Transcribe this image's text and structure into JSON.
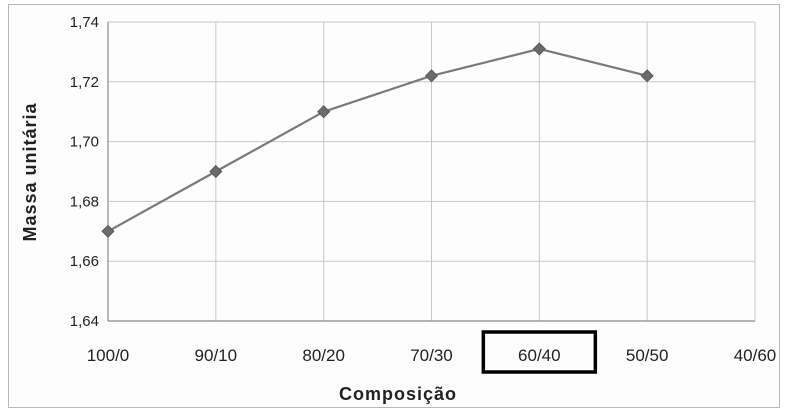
{
  "chart_data": {
    "type": "line",
    "categories": [
      "100/0",
      "90/10",
      "80/20",
      "70/30",
      "60/40",
      "50/50",
      "40/60"
    ],
    "series": [
      {
        "values": [
          1.67,
          1.69,
          1.71,
          1.722,
          1.731,
          1.722,
          null
        ]
      }
    ],
    "xlabel": "Composição",
    "ylabel": "Massa unitária",
    "ylim": [
      1.64,
      1.74
    ],
    "yticks": [
      "1,64",
      "1,66",
      "1,68",
      "1,70",
      "1,72",
      "1,74"
    ],
    "grid": true,
    "highlighted_category": "60/40",
    "colors": {
      "line": "#7a7a7a",
      "marker": "#6a6a6a",
      "grid": "#c8c8c8",
      "highlight": "#000000"
    }
  }
}
